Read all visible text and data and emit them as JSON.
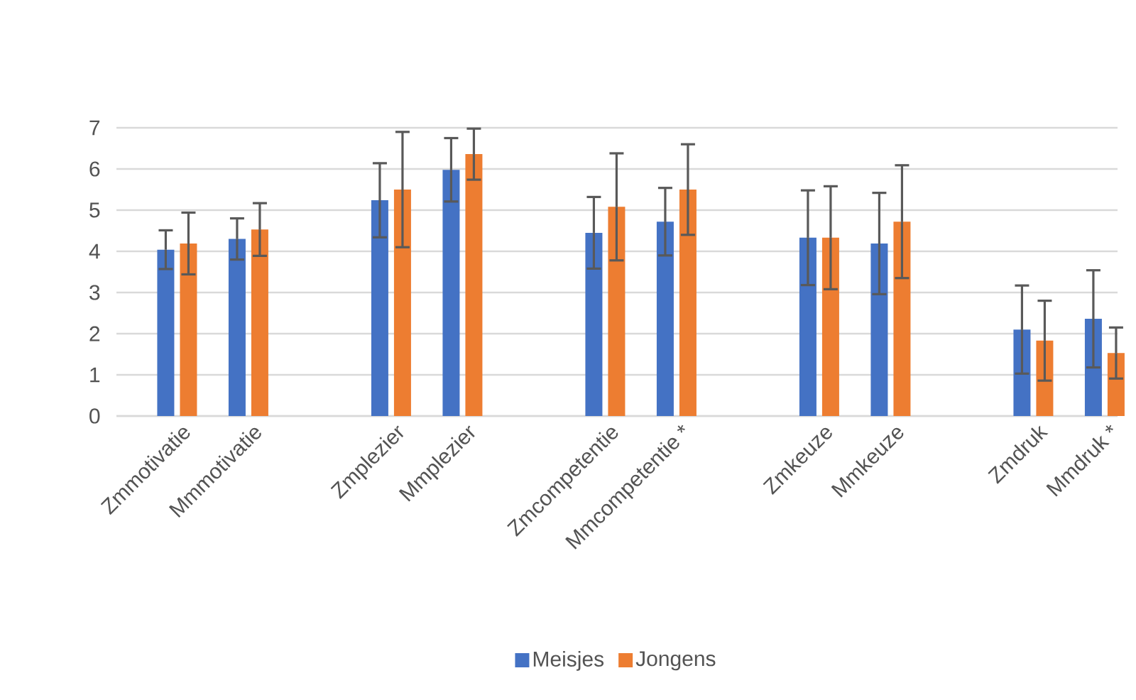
{
  "chart_data": {
    "type": "bar",
    "categories": [
      "Zmmotivatie",
      "Mmmotivatie",
      null,
      "Zmplezier",
      "Mmplezier",
      null,
      "Zmcompetentie",
      "Mmcompetentie *",
      null,
      "Zmkeuze",
      "Mmkeuze",
      null,
      "Zmdruk",
      "Mmdruk *"
    ],
    "series": [
      {
        "name": "Meisjes",
        "color": "#4472c4",
        "values": [
          4.04,
          4.3,
          null,
          5.24,
          5.98,
          null,
          4.45,
          4.72,
          null,
          4.33,
          4.19,
          null,
          2.1,
          2.36
        ],
        "errors": [
          0.47,
          0.5,
          null,
          0.9,
          0.77,
          null,
          0.87,
          0.82,
          null,
          1.15,
          1.23,
          null,
          1.07,
          1.18
        ]
      },
      {
        "name": "Jongens",
        "color": "#ed7d31",
        "values": [
          4.19,
          4.53,
          null,
          5.5,
          6.36,
          null,
          5.08,
          5.5,
          null,
          4.33,
          4.72,
          null,
          1.83,
          1.53
        ],
        "errors": [
          0.75,
          0.64,
          null,
          1.4,
          0.62,
          null,
          1.3,
          1.1,
          null,
          1.25,
          1.37,
          null,
          0.97,
          0.62
        ]
      }
    ],
    "ylim": [
      0,
      7
    ],
    "yticks": [
      0,
      1,
      2,
      3,
      4,
      5,
      6,
      7
    ],
    "grid": "y",
    "legend": "bottom"
  }
}
